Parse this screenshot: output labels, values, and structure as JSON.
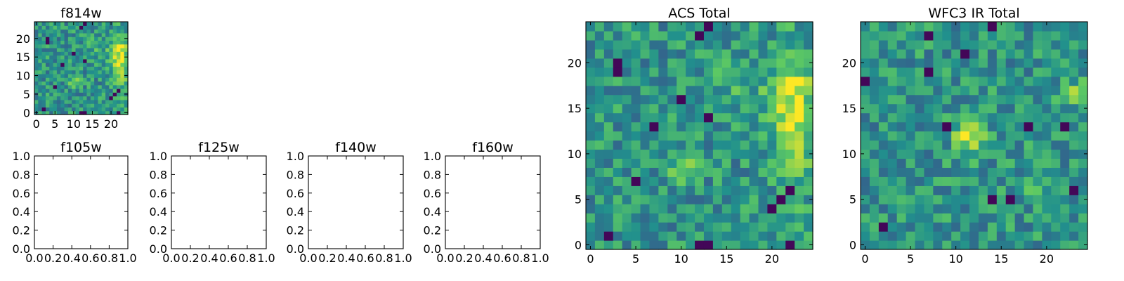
{
  "figure": {
    "panels": [
      {
        "id": "f814w",
        "title": "f814w",
        "kind": "image",
        "src": "acs",
        "xticks": [
          "0",
          "5",
          "10",
          "15",
          "20"
        ],
        "yticks": [
          "0",
          "5",
          "10",
          "15",
          "20"
        ]
      },
      {
        "id": "f105w",
        "title": "f105w",
        "kind": "empty",
        "xticks": [
          "0.0",
          "0.2",
          "0.4",
          "0.6",
          "0.8",
          "1.0"
        ],
        "yticks": [
          "0.0",
          "0.2",
          "0.4",
          "0.6",
          "0.8",
          "1.0"
        ]
      },
      {
        "id": "f125w",
        "title": "f125w",
        "kind": "empty",
        "xticks": [
          "0.0",
          "0.2",
          "0.4",
          "0.6",
          "0.8",
          "1.0"
        ],
        "yticks": [
          "0.0",
          "0.2",
          "0.4",
          "0.6",
          "0.8",
          "1.0"
        ]
      },
      {
        "id": "f140w",
        "title": "f140w",
        "kind": "empty",
        "xticks": [
          "0.0",
          "0.2",
          "0.4",
          "0.6",
          "0.8",
          "1.0"
        ],
        "yticks": [
          "0.0",
          "0.2",
          "0.4",
          "0.6",
          "0.8",
          "1.0"
        ]
      },
      {
        "id": "f160w",
        "title": "f160w",
        "kind": "empty",
        "xticks": [
          "0.0",
          "0.2",
          "0.4",
          "0.6",
          "0.8",
          "1.0"
        ],
        "yticks": [
          "0.0",
          "0.2",
          "0.4",
          "0.6",
          "0.8",
          "1.0"
        ]
      },
      {
        "id": "acs-total",
        "title": "ACS Total",
        "kind": "image",
        "src": "acs",
        "xticks": [
          "0",
          "5",
          "10",
          "15",
          "20"
        ],
        "yticks": [
          "0",
          "5",
          "10",
          "15",
          "20"
        ]
      },
      {
        "id": "wfc3-ir-total",
        "title": "WFC3 IR Total",
        "kind": "image",
        "src": "wfc3",
        "xticks": [
          "0",
          "5",
          "10",
          "15",
          "20"
        ],
        "yticks": [
          "0",
          "5",
          "10",
          "15",
          "20"
        ]
      }
    ]
  },
  "chart_data": [
    {
      "type": "heatmap",
      "title": "f814w",
      "xlim": [
        -0.5,
        24.5
      ],
      "ylim": [
        -0.5,
        24.5
      ],
      "colormap": "viridis",
      "grid": false,
      "description_values": "25x25 pixel cutout; same pattern as ACS Total"
    },
    {
      "type": "scatter",
      "title": "f105w",
      "xlim": [
        0,
        1
      ],
      "ylim": [
        0,
        1
      ],
      "series": []
    },
    {
      "type": "scatter",
      "title": "f125w",
      "xlim": [
        0,
        1
      ],
      "ylim": [
        0,
        1
      ],
      "series": []
    },
    {
      "type": "scatter",
      "title": "f140w",
      "xlim": [
        0,
        1
      ],
      "ylim": [
        0,
        1
      ],
      "series": []
    },
    {
      "type": "scatter",
      "title": "f160w",
      "xlim": [
        0,
        1
      ],
      "ylim": [
        0,
        1
      ],
      "series": []
    },
    {
      "type": "heatmap",
      "title": "ACS Total",
      "xlim": [
        -0.5,
        24.5
      ],
      "ylim": [
        -0.5,
        24.5
      ],
      "colormap": "viridis",
      "grid": false,
      "features": [
        {
          "x": 22.5,
          "y": 14,
          "level": "high"
        },
        {
          "x": 10,
          "y": 8.5,
          "level": "high"
        },
        {
          "x": 13,
          "y": 0,
          "level": "low"
        },
        {
          "x": 21,
          "y": 5,
          "level": "low"
        }
      ]
    },
    {
      "type": "heatmap",
      "title": "WFC3 IR Total",
      "xlim": [
        -0.5,
        24.5
      ],
      "ylim": [
        -0.5,
        24.5
      ],
      "colormap": "viridis",
      "grid": false,
      "features": [
        {
          "x": 11.5,
          "y": 12,
          "level": "high"
        },
        {
          "x": 23,
          "y": 16.5,
          "level": "high"
        },
        {
          "x": 2,
          "y": 2,
          "level": "low"
        },
        {
          "x": 14,
          "y": 5,
          "level": "low"
        }
      ]
    }
  ],
  "colors": {
    "viridis": [
      "#440154",
      "#3b528b",
      "#21908d",
      "#5dc963",
      "#fde725"
    ]
  }
}
